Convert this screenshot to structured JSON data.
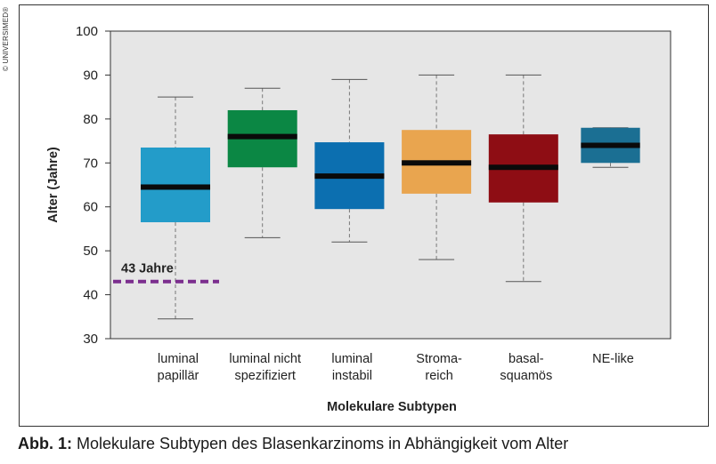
{
  "copyright": "© UNIVERSIMED®",
  "caption": {
    "label": "Abb. 1:",
    "text": " Molekulare Subtypen des Blasenkarzinoms in Abhängigkeit vom Alter"
  },
  "chart_data": {
    "type": "boxplot",
    "xlabel": "Molekulare Subtypen",
    "ylabel": "Alter (Jahre)",
    "ylim": [
      30,
      100
    ],
    "yticks": [
      30,
      40,
      50,
      60,
      70,
      80,
      90,
      100
    ],
    "grid": false,
    "categories": [
      [
        "luminal",
        "papillär"
      ],
      [
        "luminal nicht",
        "spezifiziert"
      ],
      [
        "luminal",
        "instabil"
      ],
      [
        "Stroma-",
        "reich"
      ],
      [
        "basal-",
        "squamös"
      ],
      [
        "NE-like"
      ]
    ],
    "boxes": [
      {
        "min": 34.5,
        "q1": 56.5,
        "median": 64.5,
        "q3": 73.5,
        "max": 85,
        "color": "#239CC9"
      },
      {
        "min": 53,
        "q1": 69,
        "median": 76,
        "q3": 82,
        "max": 87,
        "color": "#0B8744"
      },
      {
        "min": 52,
        "q1": 59.5,
        "median": 67,
        "q3": 74.7,
        "max": 89,
        "color": "#0C6FB0"
      },
      {
        "min": 48,
        "q1": 63,
        "median": 70,
        "q3": 77.5,
        "max": 90,
        "color": "#E9A54F"
      },
      {
        "min": 43,
        "q1": 61,
        "median": 69,
        "q3": 76.5,
        "max": 90,
        "color": "#8E0D14"
      },
      {
        "min": 69,
        "q1": 70,
        "median": 74,
        "q3": 78,
        "max": 78,
        "color": "#1B6F93"
      }
    ],
    "reference_line": {
      "value": 43,
      "label": "43 Jahre",
      "color": "#7B2E8E",
      "style": "dashed"
    },
    "plot_background": "#E6E6E6"
  }
}
